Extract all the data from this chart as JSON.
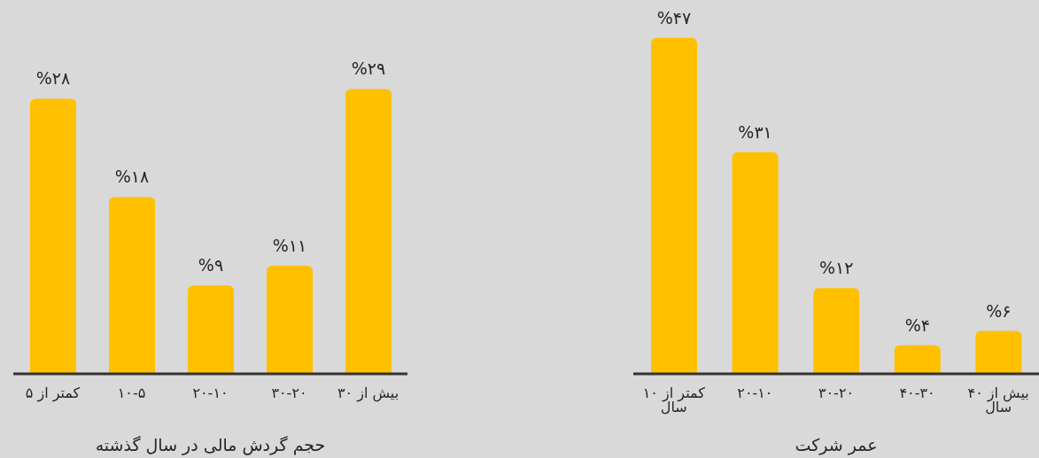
{
  "chart_data": [
    {
      "type": "bar",
      "xlabel": "حجم گردش مالی در سال گذشته",
      "categories": [
        "کمتر از ۵",
        "۱۰-۵",
        "۲۰-۱۰",
        "۳۰-۲۰",
        "بیش از ۳۰"
      ],
      "values": [
        28,
        18,
        9,
        11,
        29
      ],
      "value_labels": [
        "%۲۸",
        "%۱۸",
        "%۹",
        "%۱۱",
        "%۲۹"
      ],
      "color": "#ffc000"
    },
    {
      "type": "bar",
      "xlabel": "عمر شرکت",
      "categories": [
        "کمتر از ۱۰ سال",
        "۲۰-۱۰",
        "۳۰-۲۰",
        "۴۰-۳۰",
        "بیش از ۴۰ سال"
      ],
      "values": [
        47,
        31,
        12,
        4,
        6
      ],
      "value_labels": [
        "%۴۷",
        "%۳۱",
        "%۱۲",
        "%۴",
        "%۶"
      ],
      "color": "#ffc000"
    }
  ]
}
